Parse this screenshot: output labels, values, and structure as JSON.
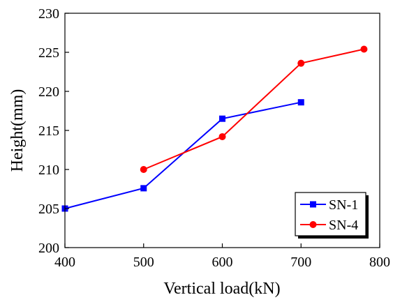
{
  "chart_data": {
    "type": "line",
    "title": "",
    "xlabel": "Vertical load(kN)",
    "ylabel": "Height(mm)",
    "xlim": [
      400,
      800
    ],
    "ylim": [
      200,
      230
    ],
    "x_ticks": [
      400,
      500,
      600,
      700,
      800
    ],
    "y_ticks": [
      200,
      205,
      210,
      215,
      220,
      225,
      230
    ],
    "grid": false,
    "legend_position": "bottom-right",
    "series": [
      {
        "name": "SN-1",
        "color": "#0000ff",
        "marker": "square",
        "x": [
          400,
          500,
          600,
          700
        ],
        "y": [
          205.0,
          207.6,
          216.5,
          218.6
        ]
      },
      {
        "name": "SN-4",
        "color": "#ff0000",
        "marker": "circle",
        "x": [
          500,
          600,
          700,
          780
        ],
        "y": [
          210.0,
          214.2,
          223.6,
          225.4
        ]
      }
    ]
  }
}
